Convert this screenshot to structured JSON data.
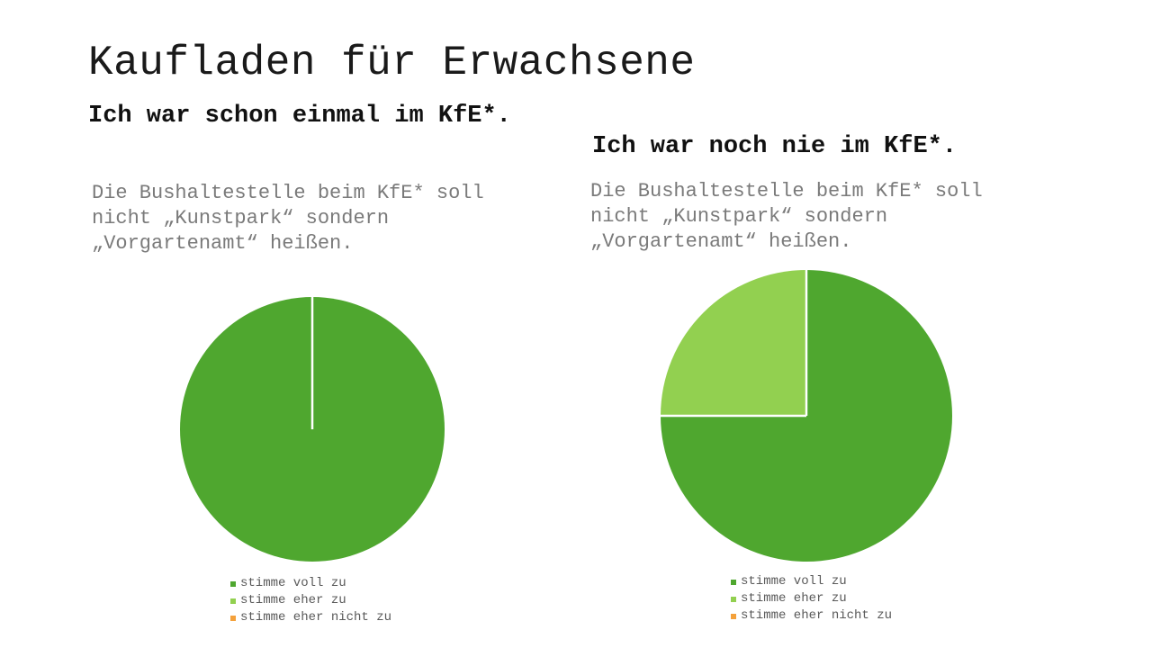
{
  "slide": {
    "title": "Kaufladen für Erwachsene"
  },
  "panels": [
    {
      "heading": "Ich war schon einmal im KfE*.",
      "question": "Die Bushaltestelle beim KfE* soll nicht „Kunstpark“ sondern „Vorgartenamt“ heißen."
    },
    {
      "heading": "Ich war noch nie im KfE*.",
      "question": "Die Bushaltestelle beim KfE* soll nicht „Kunstpark“ sondern „Vorgartenamt“ heißen."
    }
  ],
  "chart_data": [
    {
      "type": "pie",
      "categories": [
        "stimme voll zu",
        "stimme eher zu",
        "stimme eher nicht zu"
      ],
      "values": [
        100,
        0,
        0
      ],
      "colors": [
        "#4fa72f",
        "#92d050",
        "#f4a13b"
      ],
      "legend_position": "bottom"
    },
    {
      "type": "pie",
      "categories": [
        "stimme voll zu",
        "stimme eher zu",
        "stimme eher nicht zu"
      ],
      "values": [
        75,
        25,
        0
      ],
      "colors": [
        "#4fa72f",
        "#92d050",
        "#f4a13b"
      ],
      "legend_position": "bottom"
    }
  ]
}
